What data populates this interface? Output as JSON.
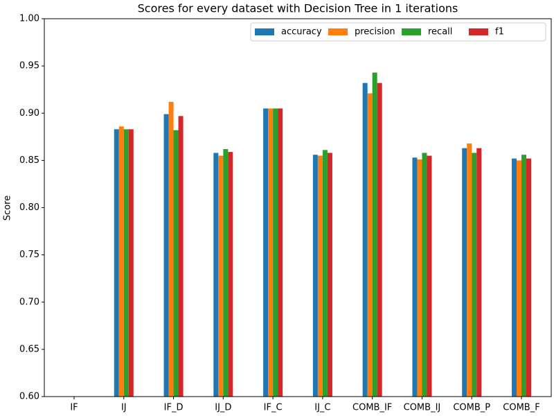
{
  "chart_data": {
    "type": "bar",
    "title": "Scores for every dataset with Decision Tree in 1 iterations",
    "y_label": "Score",
    "categories": [
      "IF",
      "IJ",
      "IF_D",
      "IJ_D",
      "IF_C",
      "IJ_C",
      "COMB_IF",
      "COMB_IJ",
      "COMB_P",
      "COMB_F"
    ],
    "series": [
      {
        "name": "accuracy",
        "color": "#1f77b4",
        "values": [
          null,
          0.883,
          0.899,
          0.858,
          0.905,
          0.856,
          0.932,
          0.853,
          0.863,
          0.852
        ]
      },
      {
        "name": "precision",
        "color": "#ff7f0e",
        "values": [
          null,
          0.886,
          0.912,
          0.855,
          0.905,
          0.855,
          0.921,
          0.851,
          0.868,
          0.85
        ]
      },
      {
        "name": "recall",
        "color": "#2ca02c",
        "values": [
          null,
          0.883,
          0.882,
          0.862,
          0.905,
          0.861,
          0.943,
          0.858,
          0.858,
          0.856
        ]
      },
      {
        "name": "f1",
        "color": "#d62728",
        "values": [
          null,
          0.883,
          0.897,
          0.859,
          0.905,
          0.858,
          0.932,
          0.855,
          0.863,
          0.852
        ]
      }
    ],
    "ylim": [
      0.6,
      1.0
    ],
    "yticks": [
      {
        "value": 0.6,
        "label": "0.60"
      },
      {
        "value": 0.65,
        "label": "0.65"
      },
      {
        "value": 0.7,
        "label": "0.70"
      },
      {
        "value": 0.75,
        "label": "0.75"
      },
      {
        "value": 0.8,
        "label": "0.80"
      },
      {
        "value": 0.85,
        "label": "0.85"
      },
      {
        "value": 0.9,
        "label": "0.90"
      },
      {
        "value": 0.95,
        "label": "0.95"
      },
      {
        "value": 1.0,
        "label": "1.00"
      }
    ],
    "legend": "upper right"
  }
}
